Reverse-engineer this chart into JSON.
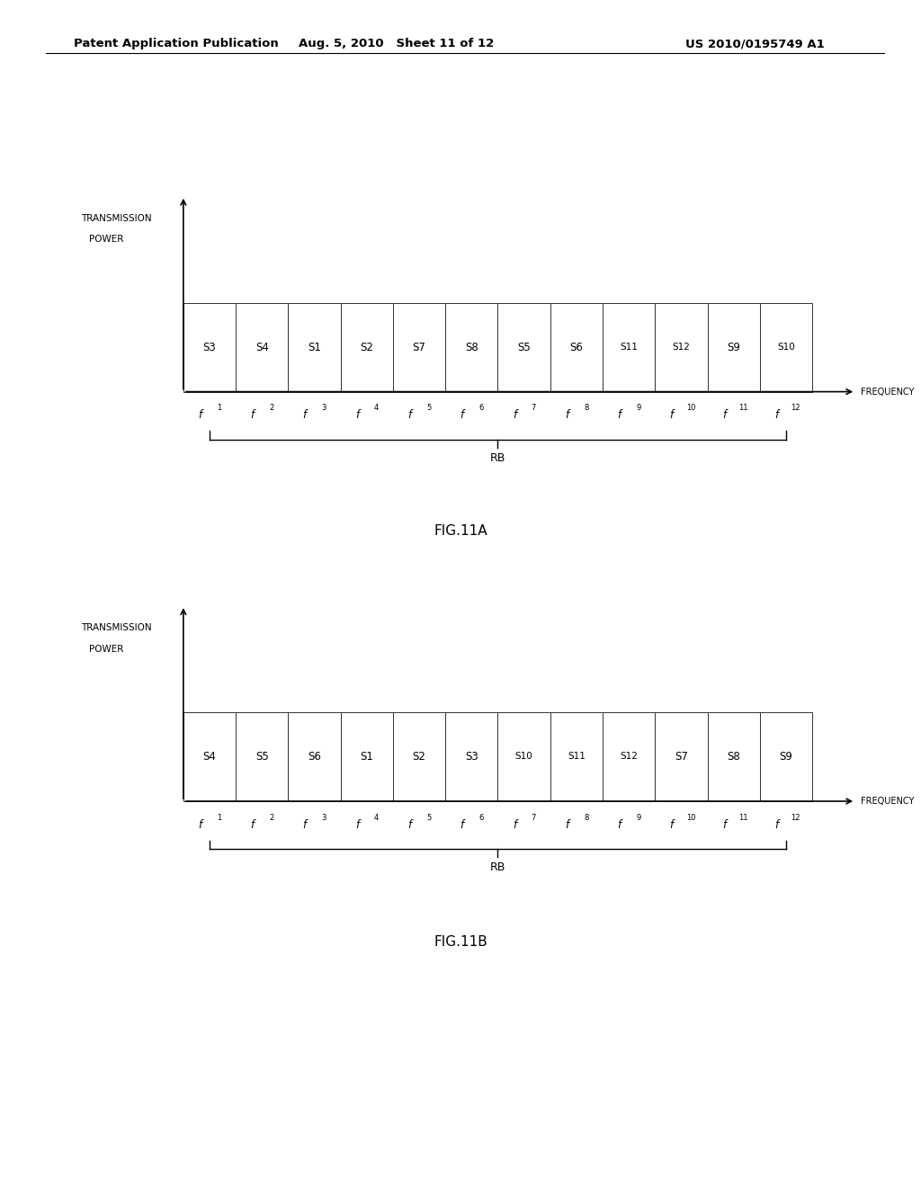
{
  "header_left": "Patent Application Publication",
  "header_mid": "Aug. 5, 2010   Sheet 11 of 12",
  "header_right": "US 2010/0195749 A1",
  "fig_a_label": "FIG.11A",
  "fig_b_label": "FIG.11B",
  "fig_a_cells": [
    "S3",
    "S4",
    "S1",
    "S2",
    "S7",
    "S8",
    "S5",
    "S6",
    "S11",
    "S12",
    "S9",
    "S10"
  ],
  "fig_b_cells": [
    "S4",
    "S5",
    "S6",
    "S1",
    "S2",
    "S3",
    "S10",
    "S11",
    "S12",
    "S7",
    "S8",
    "S9"
  ],
  "freq_labels_base": [
    "f",
    "f",
    "f",
    "f",
    "f",
    "f",
    "f",
    "f",
    "f",
    "f",
    "f",
    "f"
  ],
  "freq_subs": [
    "1",
    "2",
    "3",
    "4",
    "5",
    "6",
    "7",
    "8",
    "9",
    "10",
    "11",
    "12"
  ],
  "y_label_line1": "TRANSMISSION",
  "y_label_line2": "POWER",
  "x_label": "FREQUENCY",
  "rb_label": "RB",
  "bg_color": "#ffffff",
  "cell_color": "#ffffff",
  "cell_edge_color": "#333333",
  "text_color": "#000000",
  "header_line_color": "#000000"
}
